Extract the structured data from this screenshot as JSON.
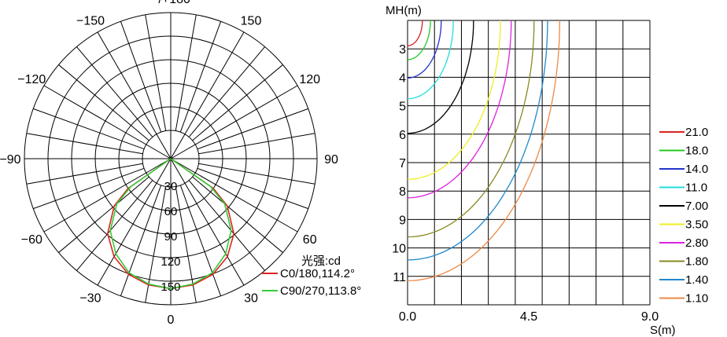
{
  "chart_data": [
    {
      "type": "polar",
      "angle_labels": [
        {
          "text": "−/+180",
          "deg": 180
        },
        {
          "text": "150",
          "deg": 150
        },
        {
          "text": "120",
          "deg": 120
        },
        {
          "text": "90",
          "deg": 90
        },
        {
          "text": "60",
          "deg": 60
        },
        {
          "text": "30",
          "deg": 30
        },
        {
          "text": "0",
          "deg": 0
        },
        {
          "text": "−30",
          "deg": -30
        },
        {
          "text": "−60",
          "deg": -60
        },
        {
          "text": "−90",
          "deg": -90
        },
        {
          "text": "−120",
          "deg": -120
        },
        {
          "text": "−150",
          "deg": -150
        }
      ],
      "radial_ticks": [
        "30",
        "60",
        "90",
        "120",
        "150"
      ],
      "rmax": 150,
      "unit_label": "光强:cd",
      "series": [
        {
          "name": "C0/180,114.2°",
          "color": "#dd2222",
          "angles": [
            0,
            10,
            20,
            30,
            40,
            50,
            55,
            57.1,
            60,
            70,
            80,
            90
          ],
          "values": [
            155,
            153,
            147,
            135,
            117,
            88,
            62,
            0,
            0,
            0,
            0,
            0
          ]
        },
        {
          "name": "C90/270,113.8°",
          "color": "#33cc33",
          "angles": [
            0,
            10,
            20,
            30,
            40,
            50,
            55,
            56.9,
            60,
            70,
            80,
            90
          ],
          "values": [
            155,
            152,
            145,
            131,
            112,
            84,
            58,
            0,
            0,
            0,
            0,
            0
          ]
        }
      ]
    },
    {
      "type": "isolux",
      "ylabel": "MH(m)",
      "xlabel": "S(m)",
      "x_ticks": [
        "0.0",
        "4.5",
        "9.0"
      ],
      "y_ticks": [
        "3",
        "4",
        "5",
        "6",
        "7",
        "8",
        "9",
        "10",
        "11"
      ],
      "xlim": [
        0,
        9
      ],
      "ylim": [
        2,
        12
      ],
      "legend": [
        {
          "label": "21.0",
          "color": "#dd2222",
          "s": 0.55
        },
        {
          "label": "18.0",
          "color": "#22cc22",
          "s": 0.85
        },
        {
          "label": "14.0",
          "color": "#2233cc",
          "s": 1.25
        },
        {
          "label": "11.0",
          "color": "#22dddd",
          "s": 1.7
        },
        {
          "label": "7.00",
          "color": "#000000",
          "s": 2.45
        },
        {
          "label": "3.50",
          "color": "#eeee22",
          "s": 3.45
        },
        {
          "label": "2.80",
          "color": "#dd22dd",
          "s": 3.85
        },
        {
          "label": "1.80",
          "color": "#888822",
          "s": 4.7
        },
        {
          "label": "1.40",
          "color": "#2288cc",
          "s": 5.2
        },
        {
          "label": "1.10",
          "color": "#ee8844",
          "s": 5.65
        }
      ]
    }
  ]
}
